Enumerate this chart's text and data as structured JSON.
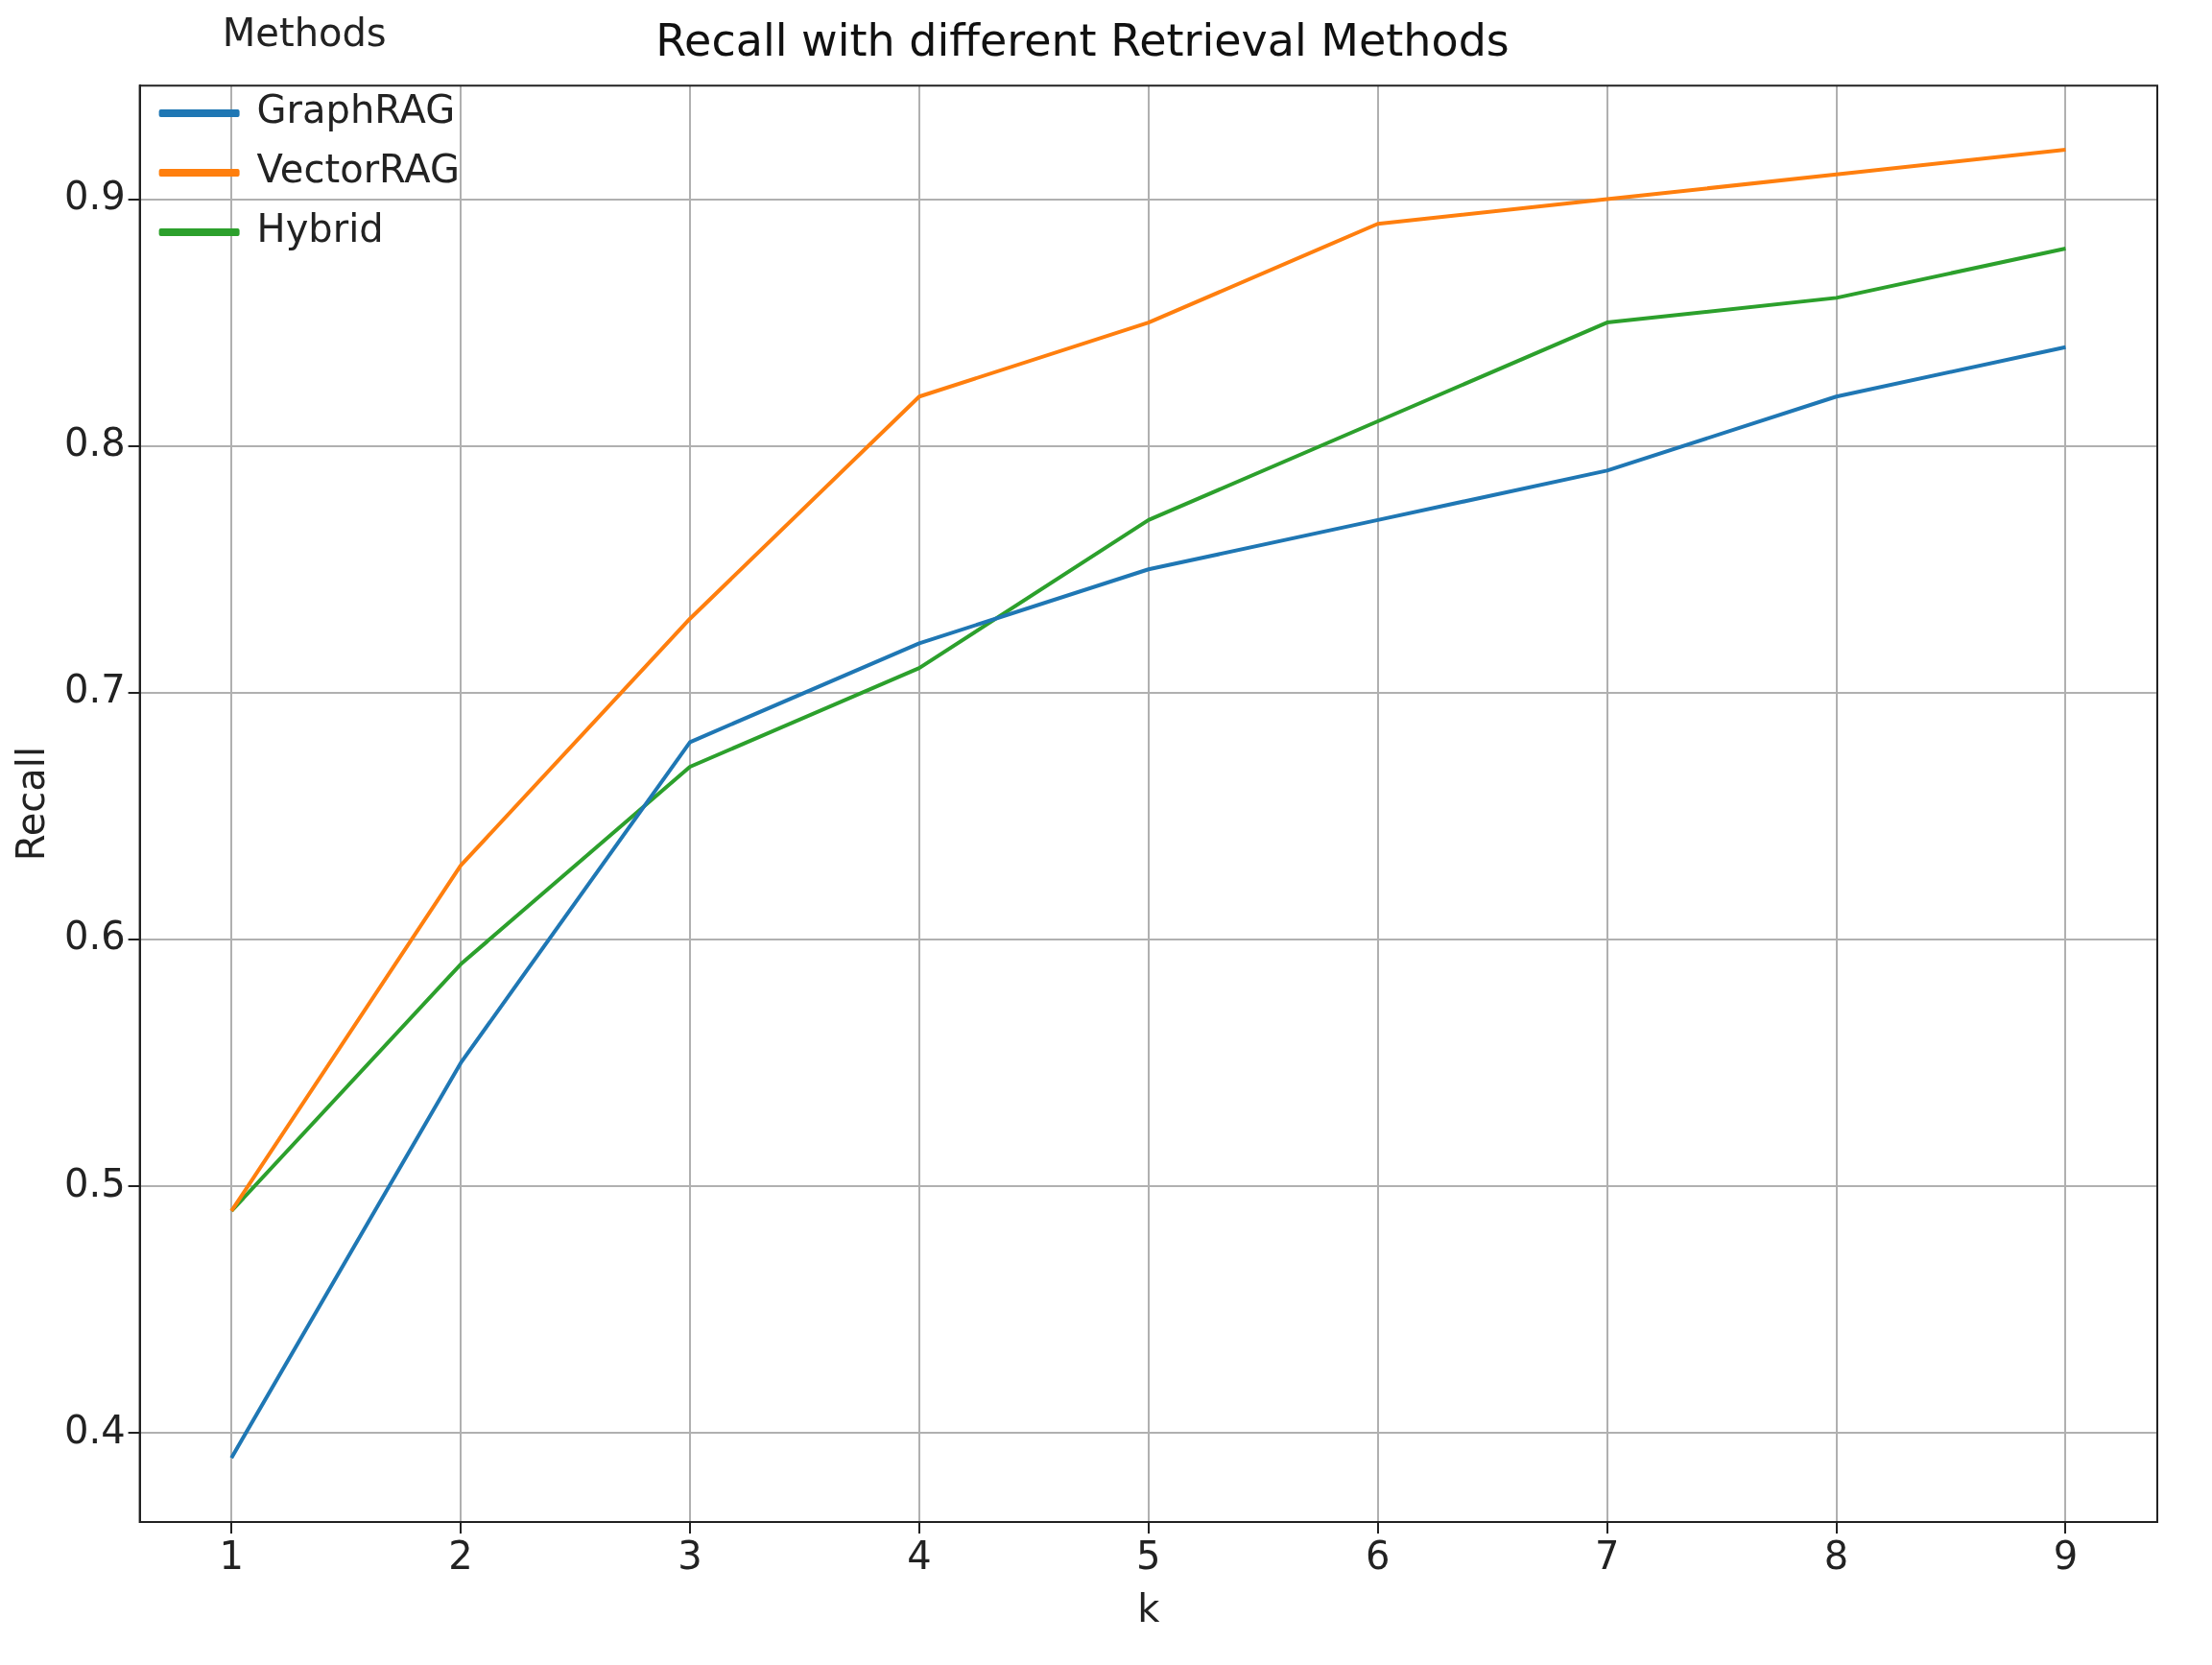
{
  "chart_data": {
    "type": "line",
    "title": "Recall with different Retrieval Methods",
    "xlabel": "k",
    "ylabel": "Recall",
    "legend_title": "Methods",
    "x": [
      1,
      2,
      3,
      4,
      5,
      6,
      7,
      8,
      9
    ],
    "series": [
      {
        "name": "GraphRAG",
        "color": "#1f77b4",
        "values": [
          0.39,
          0.55,
          0.68,
          0.72,
          0.75,
          0.77,
          0.79,
          0.82,
          0.84
        ]
      },
      {
        "name": "VectorRAG",
        "color": "#ff7f0e",
        "values": [
          0.49,
          0.63,
          0.73,
          0.82,
          0.85,
          0.89,
          0.9,
          0.91,
          0.92
        ]
      },
      {
        "name": "Hybrid",
        "color": "#2ca02c",
        "values": [
          0.49,
          0.59,
          0.67,
          0.71,
          0.77,
          0.81,
          0.85,
          0.86,
          0.88
        ]
      }
    ],
    "xlim": [
      0.6,
      9.4
    ],
    "xticks": [
      1,
      2,
      3,
      4,
      5,
      6,
      7,
      8,
      9
    ],
    "ylim": [
      0.364,
      0.946
    ],
    "yticks": [
      0.4,
      0.5,
      0.6,
      0.7,
      0.8,
      0.9
    ],
    "grid": true,
    "legend": "top left",
    "marker": "none",
    "line_style": "solid"
  }
}
